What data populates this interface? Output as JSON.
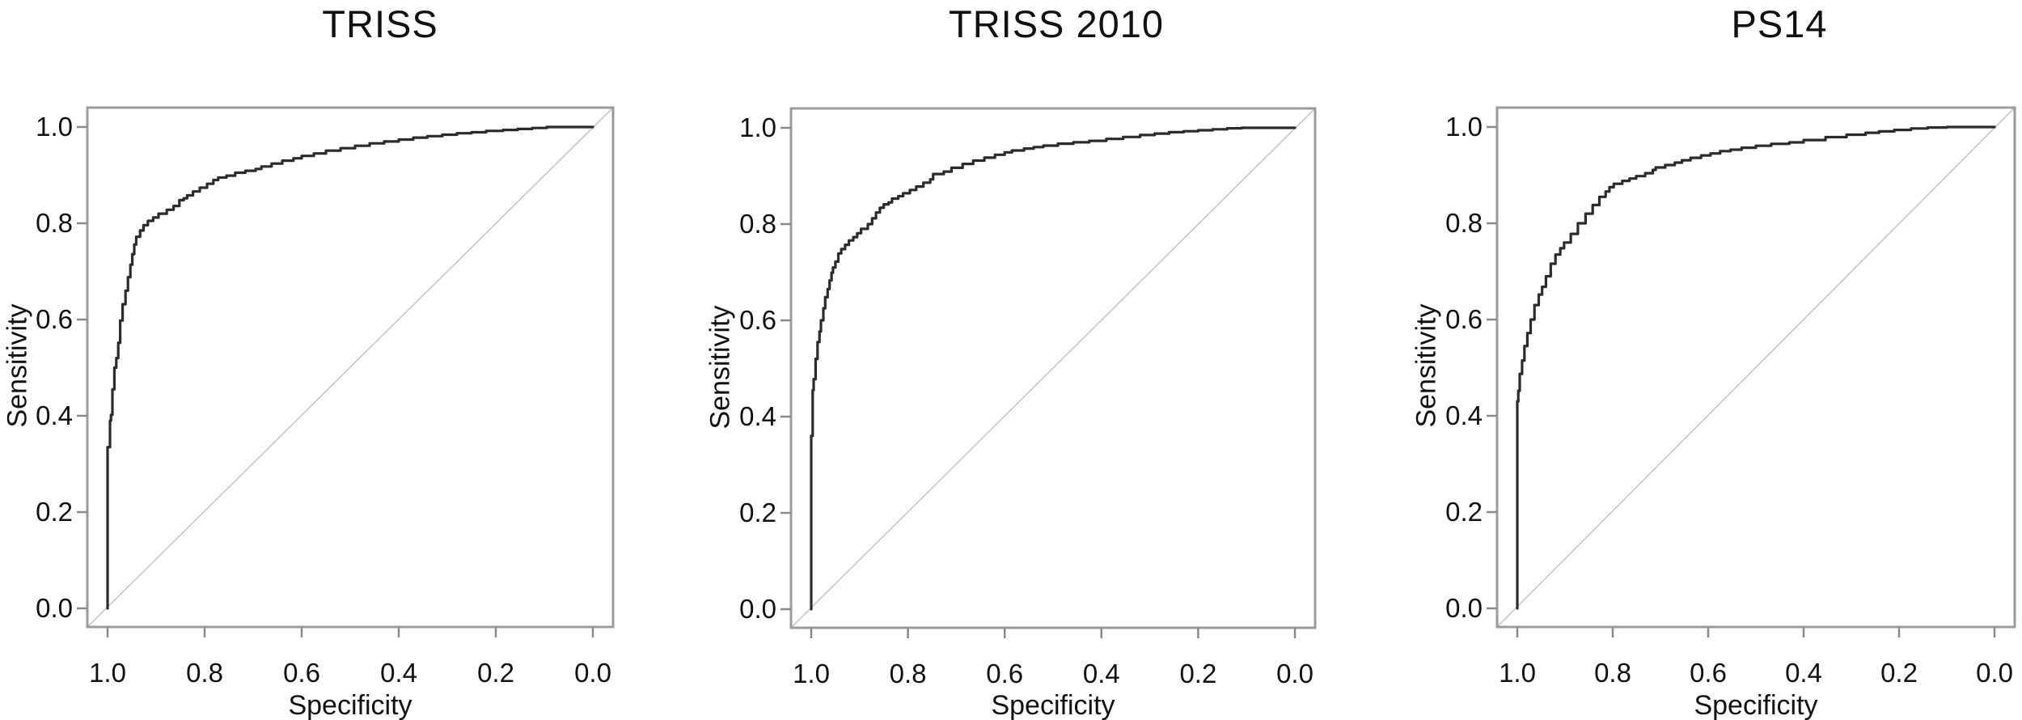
{
  "figure": {
    "background": "#ffffff",
    "description": "Three ROC curve panels comparing trauma survival prediction models"
  },
  "styles": {
    "curve_color": "#2b2b2b",
    "frame_color": "#9b9b9b",
    "tick_color": "#8a8a8a",
    "diagonal_color": "#c9c9c9",
    "text_color": "#111111"
  },
  "chart_data": [
    {
      "type": "line",
      "title": "TRISS",
      "xlabel": "Specificity",
      "ylabel": "Sensitivity",
      "xlim": [
        1.0,
        0.0
      ],
      "ylim": [
        0.0,
        1.0
      ],
      "x_axis_reversed": true,
      "grid": false,
      "legend": "none",
      "x_ticks": [
        1.0,
        0.8,
        0.6,
        0.4,
        0.2,
        0.0
      ],
      "x_tick_labels": [
        "1.0",
        "0.8",
        "0.6",
        "0.4",
        "0.2",
        "0.0"
      ],
      "y_ticks": [
        0.0,
        0.2,
        0.4,
        0.6,
        0.8,
        1.0
      ],
      "y_tick_labels": [
        "0.0",
        "0.2",
        "0.4",
        "0.6",
        "0.8",
        "1.0"
      ],
      "reference_line": {
        "name": "chance-diagonal",
        "from": [
          1.0,
          0.0
        ],
        "to": [
          0.0,
          1.0
        ]
      },
      "series": [
        {
          "name": "ROC curve",
          "points_format": [
            "specificity",
            "sensitivity"
          ],
          "points": [
            [
              1.0,
              0.0
            ],
            [
              1.0,
              0.322
            ],
            [
              0.995,
              0.335
            ],
            [
              0.993,
              0.39
            ],
            [
              0.99,
              0.402
            ],
            [
              0.986,
              0.455
            ],
            [
              0.982,
              0.5
            ],
            [
              0.978,
              0.52
            ],
            [
              0.974,
              0.552
            ],
            [
              0.969,
              0.598
            ],
            [
              0.963,
              0.632
            ],
            [
              0.958,
              0.66
            ],
            [
              0.953,
              0.688
            ],
            [
              0.949,
              0.714
            ],
            [
              0.945,
              0.736
            ],
            [
              0.941,
              0.756
            ],
            [
              0.933,
              0.772
            ],
            [
              0.926,
              0.785
            ],
            [
              0.917,
              0.796
            ],
            [
              0.906,
              0.805
            ],
            [
              0.895,
              0.812
            ],
            [
              0.878,
              0.82
            ],
            [
              0.864,
              0.828
            ],
            [
              0.852,
              0.836
            ],
            [
              0.843,
              0.848
            ],
            [
              0.836,
              0.852
            ],
            [
              0.824,
              0.858
            ],
            [
              0.81,
              0.866
            ],
            [
              0.795,
              0.874
            ],
            [
              0.782,
              0.882
            ],
            [
              0.772,
              0.89
            ],
            [
              0.755,
              0.895
            ],
            [
              0.737,
              0.899
            ],
            [
              0.716,
              0.905
            ],
            [
              0.695,
              0.909
            ],
            [
              0.683,
              0.913
            ],
            [
              0.662,
              0.918
            ],
            [
              0.64,
              0.924
            ],
            [
              0.617,
              0.93
            ],
            [
              0.6,
              0.935
            ],
            [
              0.575,
              0.94
            ],
            [
              0.55,
              0.945
            ],
            [
              0.52,
              0.951
            ],
            [
              0.49,
              0.956
            ],
            [
              0.46,
              0.961
            ],
            [
              0.43,
              0.966
            ],
            [
              0.4,
              0.97
            ],
            [
              0.37,
              0.974
            ],
            [
              0.341,
              0.978
            ],
            [
              0.31,
              0.981
            ],
            [
              0.28,
              0.984
            ],
            [
              0.25,
              0.987
            ],
            [
              0.22,
              0.989
            ],
            [
              0.185,
              0.992
            ],
            [
              0.155,
              0.994
            ],
            [
              0.125,
              0.996
            ],
            [
              0.095,
              0.998
            ],
            [
              0.07,
              1.0
            ],
            [
              0.0,
              1.0
            ]
          ]
        }
      ]
    },
    {
      "type": "line",
      "title": "TRISS 2010",
      "xlabel": "Specificity",
      "ylabel": "Sensitivity",
      "xlim": [
        1.0,
        0.0
      ],
      "ylim": [
        0.0,
        1.0
      ],
      "x_axis_reversed": true,
      "grid": false,
      "legend": "none",
      "x_ticks": [
        1.0,
        0.8,
        0.6,
        0.4,
        0.2,
        0.0
      ],
      "x_tick_labels": [
        "1.0",
        "0.8",
        "0.6",
        "0.4",
        "0.2",
        "0.0"
      ],
      "y_ticks": [
        0.0,
        0.2,
        0.4,
        0.6,
        0.8,
        1.0
      ],
      "y_tick_labels": [
        "0.0",
        "0.2",
        "0.4",
        "0.6",
        "0.8",
        "1.0"
      ],
      "reference_line": {
        "name": "chance-diagonal",
        "from": [
          1.0,
          0.0
        ],
        "to": [
          0.0,
          1.0
        ]
      },
      "series": [
        {
          "name": "ROC curve",
          "points_format": [
            "specificity",
            "sensitivity"
          ],
          "points": [
            [
              1.0,
              0.0
            ],
            [
              1.0,
              0.298
            ],
            [
              0.997,
              0.36
            ],
            [
              0.995,
              0.455
            ],
            [
              0.991,
              0.478
            ],
            [
              0.987,
              0.52
            ],
            [
              0.983,
              0.555
            ],
            [
              0.98,
              0.577
            ],
            [
              0.975,
              0.6
            ],
            [
              0.971,
              0.625
            ],
            [
              0.966,
              0.648
            ],
            [
              0.962,
              0.665
            ],
            [
              0.958,
              0.683
            ],
            [
              0.955,
              0.699
            ],
            [
              0.95,
              0.71
            ],
            [
              0.944,
              0.722
            ],
            [
              0.938,
              0.739
            ],
            [
              0.93,
              0.748
            ],
            [
              0.922,
              0.757
            ],
            [
              0.913,
              0.766
            ],
            [
              0.905,
              0.773
            ],
            [
              0.897,
              0.781
            ],
            [
              0.883,
              0.79
            ],
            [
              0.874,
              0.8
            ],
            [
              0.866,
              0.812
            ],
            [
              0.858,
              0.824
            ],
            [
              0.85,
              0.834
            ],
            [
              0.84,
              0.841
            ],
            [
              0.833,
              0.845
            ],
            [
              0.82,
              0.853
            ],
            [
              0.81,
              0.858
            ],
            [
              0.796,
              0.864
            ],
            [
              0.783,
              0.871
            ],
            [
              0.768,
              0.878
            ],
            [
              0.754,
              0.886
            ],
            [
              0.748,
              0.893
            ],
            [
              0.726,
              0.904
            ],
            [
              0.71,
              0.909
            ],
            [
              0.687,
              0.917
            ],
            [
              0.665,
              0.925
            ],
            [
              0.642,
              0.932
            ],
            [
              0.62,
              0.938
            ],
            [
              0.6,
              0.944
            ],
            [
              0.585,
              0.949
            ],
            [
              0.56,
              0.953
            ],
            [
              0.54,
              0.957
            ],
            [
              0.52,
              0.96
            ],
            [
              0.49,
              0.963
            ],
            [
              0.458,
              0.967
            ],
            [
              0.425,
              0.97
            ],
            [
              0.39,
              0.973
            ],
            [
              0.355,
              0.977
            ],
            [
              0.32,
              0.981
            ],
            [
              0.29,
              0.985
            ],
            [
              0.26,
              0.988
            ],
            [
              0.23,
              0.991
            ],
            [
              0.2,
              0.993
            ],
            [
              0.17,
              0.995
            ],
            [
              0.14,
              0.997
            ],
            [
              0.11,
              0.999
            ],
            [
              0.08,
              1.0
            ],
            [
              0.0,
              1.0
            ]
          ]
        }
      ]
    },
    {
      "type": "line",
      "title": "PS14",
      "xlabel": "Specificity",
      "ylabel": "Sensitivity",
      "xlim": [
        1.0,
        0.0
      ],
      "ylim": [
        0.0,
        1.0
      ],
      "x_axis_reversed": true,
      "grid": false,
      "legend": "none",
      "x_ticks": [
        1.0,
        0.8,
        0.6,
        0.4,
        0.2,
        0.0
      ],
      "x_tick_labels": [
        "1.0",
        "0.8",
        "0.6",
        "0.4",
        "0.2",
        "0.0"
      ],
      "y_ticks": [
        0.0,
        0.2,
        0.4,
        0.6,
        0.8,
        1.0
      ],
      "y_tick_labels": [
        "0.0",
        "0.2",
        "0.4",
        "0.6",
        "0.8",
        "1.0"
      ],
      "reference_line": {
        "name": "chance-diagonal",
        "from": [
          1.0,
          0.0
        ],
        "to": [
          0.0,
          1.0
        ]
      },
      "series": [
        {
          "name": "ROC curve",
          "points_format": [
            "specificity",
            "sensitivity"
          ],
          "points": [
            [
              1.0,
              0.0
            ],
            [
              1.0,
              0.26
            ],
            [
              0.998,
              0.43
            ],
            [
              0.995,
              0.452
            ],
            [
              0.99,
              0.487
            ],
            [
              0.985,
              0.515
            ],
            [
              0.979,
              0.545
            ],
            [
              0.972,
              0.572
            ],
            [
              0.964,
              0.6
            ],
            [
              0.955,
              0.63
            ],
            [
              0.948,
              0.652
            ],
            [
              0.94,
              0.668
            ],
            [
              0.93,
              0.69
            ],
            [
              0.92,
              0.716
            ],
            [
              0.91,
              0.735
            ],
            [
              0.902,
              0.748
            ],
            [
              0.888,
              0.76
            ],
            [
              0.873,
              0.778
            ],
            [
              0.857,
              0.8
            ],
            [
              0.842,
              0.82
            ],
            [
              0.828,
              0.838
            ],
            [
              0.815,
              0.855
            ],
            [
              0.807,
              0.866
            ],
            [
              0.798,
              0.875
            ],
            [
              0.78,
              0.882
            ],
            [
              0.765,
              0.888
            ],
            [
              0.751,
              0.893
            ],
            [
              0.732,
              0.898
            ],
            [
              0.716,
              0.904
            ],
            [
              0.71,
              0.911
            ],
            [
              0.69,
              0.916
            ],
            [
              0.67,
              0.921
            ],
            [
              0.655,
              0.926
            ],
            [
              0.637,
              0.931
            ],
            [
              0.615,
              0.936
            ],
            [
              0.595,
              0.941
            ],
            [
              0.575,
              0.945
            ],
            [
              0.553,
              0.95
            ],
            [
              0.53,
              0.953
            ],
            [
              0.5,
              0.957
            ],
            [
              0.468,
              0.961
            ],
            [
              0.43,
              0.965
            ],
            [
              0.4,
              0.968
            ],
            [
              0.354,
              0.973
            ],
            [
              0.31,
              0.979
            ],
            [
              0.27,
              0.984
            ],
            [
              0.242,
              0.988
            ],
            [
              0.21,
              0.991
            ],
            [
              0.175,
              0.994
            ],
            [
              0.14,
              0.997
            ],
            [
              0.1,
              0.999
            ],
            [
              0.07,
              1.0
            ],
            [
              0.0,
              1.0
            ]
          ]
        }
      ]
    }
  ]
}
